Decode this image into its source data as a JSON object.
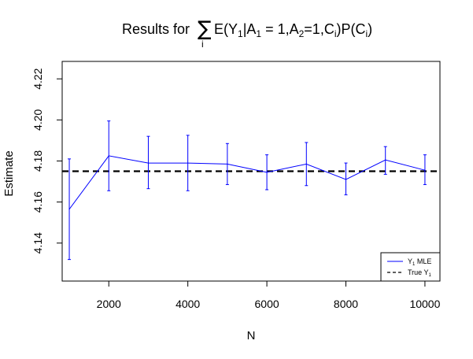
{
  "chart_data": {
    "type": "line",
    "title": {
      "prefix": "Results for ",
      "sum_symbol": "∑",
      "sum_index": "i",
      "formula": [
        [
          "E(Y",
          false
        ],
        [
          "1",
          true
        ],
        [
          "|A",
          false
        ],
        [
          "1",
          true
        ],
        [
          " = 1,A",
          false
        ],
        [
          "2",
          true
        ],
        [
          "=1,C",
          false
        ],
        [
          "i",
          true
        ],
        [
          ")P(C",
          false
        ],
        [
          "i",
          true
        ],
        [
          ")",
          false
        ]
      ]
    },
    "xlabel": "N",
    "ylabel": "Estimate",
    "xlim": [
      820,
      10380
    ],
    "ylim": [
      4.1215,
      4.2285
    ],
    "x_ticks": [
      2000,
      4000,
      6000,
      8000,
      10000
    ],
    "y_ticks": [
      4.14,
      4.16,
      4.18,
      4.2,
      4.22
    ],
    "y_tick_labels": [
      "4.14",
      "4.16",
      "4.18",
      "4.20",
      "4.22"
    ],
    "series": [
      {
        "name": "Y1 MLE",
        "legend_label": [
          "Y",
          "1",
          " MLE"
        ],
        "color": "#0000ff",
        "x": [
          1000,
          2000,
          3000,
          4000,
          5000,
          6000,
          7000,
          8000,
          9000,
          10000
        ],
        "y": [
          4.1565,
          4.1825,
          4.179,
          4.179,
          4.1785,
          4.1745,
          4.1785,
          4.171,
          4.1805,
          4.1755
        ],
        "err_low": [
          4.132,
          4.1655,
          4.1665,
          4.1655,
          4.1685,
          4.166,
          4.168,
          4.1635,
          4.1735,
          4.1685
        ],
        "err_high": [
          4.181,
          4.1995,
          4.192,
          4.1925,
          4.1885,
          4.183,
          4.189,
          4.179,
          4.187,
          4.183
        ]
      }
    ],
    "reference_line": {
      "name": "True Y1",
      "legend_label": [
        "True Y",
        "1",
        ""
      ],
      "y": 4.175,
      "color": "#000000",
      "style": "dashed"
    },
    "legend_position": "bottom-right",
    "grid": false
  }
}
